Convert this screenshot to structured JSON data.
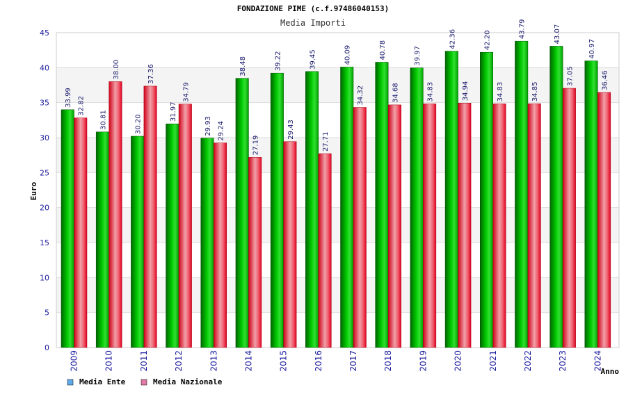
{
  "chart_data": {
    "type": "bar",
    "title": "FONDAZIONE PIME (c.f.97486040153)",
    "subtitle": "Media Importi",
    "xlabel": "Anno",
    "ylabel": "Euro",
    "ylim": [
      0,
      45
    ],
    "yticks": [
      0,
      5,
      10,
      15,
      20,
      25,
      30,
      35,
      40,
      45
    ],
    "ytick_labels": [
      "0",
      "5",
      "10",
      "15",
      "20",
      "25",
      "30",
      "35",
      "40",
      "45"
    ],
    "categories": [
      "2009",
      "2010",
      "2011",
      "2012",
      "2013",
      "2014",
      "2015",
      "2016",
      "2017",
      "2018",
      "2019",
      "2020",
      "2021",
      "2022",
      "2023",
      "2024"
    ],
    "series": [
      {
        "name": "Media Ente",
        "color": "#00c000",
        "legend_color": "#5fa8ea",
        "values": [
          33.99,
          30.81,
          30.2,
          31.97,
          29.93,
          38.48,
          39.22,
          39.45,
          40.09,
          40.78,
          39.97,
          42.36,
          42.2,
          43.79,
          43.07,
          40.97
        ],
        "labels": [
          "33.99",
          "30.81",
          "30.20",
          "31.97",
          "29.93",
          "38.48",
          "39.22",
          "39.45",
          "40.09",
          "40.78",
          "39.97",
          "42.36",
          "42.20",
          "43.79",
          "43.07",
          "40.97"
        ]
      },
      {
        "name": "Media Nazionale",
        "color": "#e8001c",
        "legend_color": "#e07aa8",
        "values": [
          32.82,
          38.0,
          37.36,
          34.79,
          29.24,
          27.19,
          29.43,
          27.71,
          34.32,
          34.68,
          34.83,
          34.94,
          34.83,
          34.85,
          37.05,
          36.46
        ],
        "labels": [
          "32.82",
          "38.00",
          "37.36",
          "34.79",
          "29.24",
          "27.19",
          "29.43",
          "27.71",
          "34.32",
          "34.68",
          "34.83",
          "34.94",
          "34.83",
          "34.85",
          "37.05",
          "36.46"
        ]
      }
    ],
    "grid": true,
    "legend": "bottom-left"
  }
}
